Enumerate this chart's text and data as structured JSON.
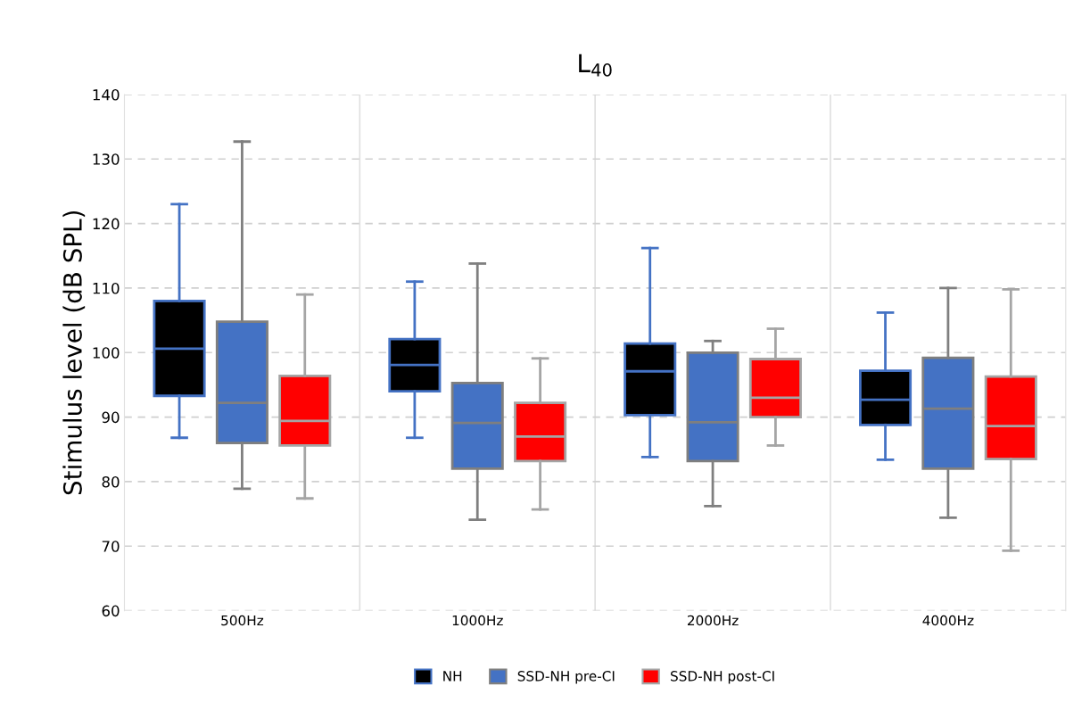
{
  "chart_data": {
    "type": "box",
    "title": "L$_{40}$",
    "ylabel": "Stimulus level (dB SPL)",
    "categories": [
      "500Hz",
      "1000Hz",
      "2000Hz",
      "4000Hz"
    ],
    "ylim": [
      60,
      140
    ],
    "yticks": [
      60,
      70,
      80,
      90,
      100,
      110,
      120,
      130,
      140
    ],
    "grid": "y",
    "legend": "bottom",
    "series": [
      {
        "name": "NH",
        "color": "#000000",
        "boxes": [
          {
            "low": 86.8,
            "q1": 93.3,
            "median": 100.6,
            "q3": 108,
            "high": 123
          },
          {
            "low": 86.8,
            "q1": 94,
            "median": 98.1,
            "q3": 102.1,
            "high": 111
          },
          {
            "low": 83.8,
            "q1": 90.3,
            "median": 97.1,
            "q3": 101.4,
            "high": 116.2
          },
          {
            "low": 83.4,
            "q1": 88.8,
            "median": 92.7,
            "q3": 97.2,
            "high": 106.2
          }
        ]
      },
      {
        "name": "SSD-NH pre-CI",
        "color": "#4472c4",
        "boxes": [
          {
            "low": 78.9,
            "q1": 86,
            "median": 92.2,
            "q3": 104.8,
            "high": 132.7
          },
          {
            "low": 74.1,
            "q1": 82,
            "median": 89.1,
            "q3": 95.3,
            "high": 113.8
          },
          {
            "low": 76.2,
            "q1": 83.2,
            "median": 89.2,
            "q3": 100,
            "high": 101.8
          },
          {
            "low": 74.4,
            "q1": 82,
            "median": 91.3,
            "q3": 99.2,
            "high": 110
          }
        ]
      },
      {
        "name": "SSD-NH post-CI",
        "color": "#ff0000",
        "boxes": [
          {
            "low": 77.4,
            "q1": 85.6,
            "median": 89.4,
            "q3": 96.4,
            "high": 109
          },
          {
            "low": 75.7,
            "q1": 83.2,
            "median": 87,
            "q3": 92.2,
            "high": 99.1
          },
          {
            "low": 85.6,
            "q1": 90,
            "median": 93,
            "q3": 99,
            "high": 103.7
          },
          {
            "low": 69.3,
            "q1": 83.5,
            "median": 88.6,
            "q3": 96.3,
            "high": 109.8
          }
        ]
      }
    ]
  }
}
